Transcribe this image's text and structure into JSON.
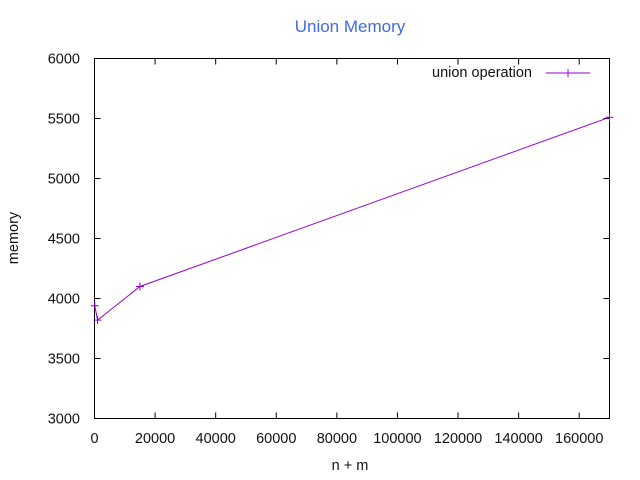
{
  "chart_data": {
    "type": "line",
    "title": "Union Memory",
    "xlabel": "n + m",
    "ylabel": "memory",
    "xlim": [
      0,
      170000
    ],
    "ylim": [
      3000,
      6000
    ],
    "x_ticks": [
      0,
      20000,
      40000,
      60000,
      80000,
      100000,
      120000,
      140000,
      160000
    ],
    "y_ticks": [
      3000,
      3500,
      4000,
      4500,
      5000,
      5500,
      6000
    ],
    "grid": false,
    "legend_position": "top-right",
    "series": [
      {
        "name": "union operation",
        "marker": "plus",
        "x": [
          100,
          1000,
          15000,
          170000
        ],
        "y": [
          3940,
          3820,
          4100,
          5510
        ]
      }
    ]
  },
  "colors": {
    "title": "#4169e1",
    "series": "#9400d3",
    "axes": "#000000",
    "text": "#111111"
  }
}
